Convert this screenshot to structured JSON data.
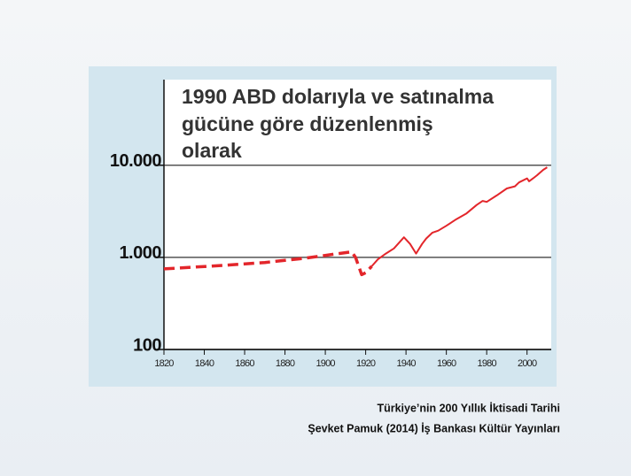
{
  "chart_data": {
    "type": "line",
    "title": [
      "1990 ABD dolarıyla ve satınalma",
      "gücüne göre düzenlenmiş",
      "olarak"
    ],
    "log_y": true,
    "grid": true,
    "xlim": [
      1820,
      2012
    ],
    "xticks": [
      1820,
      1840,
      1860,
      1880,
      1900,
      1920,
      1940,
      1960,
      1980,
      2000
    ],
    "ylim": [
      100,
      85000
    ],
    "yticks": [
      {
        "value": 100,
        "label": "100"
      },
      {
        "value": 1000,
        "label": "1.000"
      },
      {
        "value": 10000,
        "label": "10.000"
      }
    ],
    "series": [
      {
        "color": "#e3262b",
        "dashed": true,
        "x": [
          1820,
          1850,
          1870,
          1890,
          1913,
          1915,
          1918,
          1920,
          1923
        ],
        "values": [
          750,
          820,
          880,
          980,
          1150,
          1000,
          650,
          680,
          800
        ]
      },
      {
        "color": "#e3262b",
        "dashed": false,
        "x": [
          1923,
          1926,
          1930,
          1934,
          1939,
          1942,
          1945,
          1948,
          1950,
          1953,
          1956,
          1960,
          1965,
          1970,
          1975,
          1978,
          1980,
          1985,
          1990,
          1994,
          1996,
          2000,
          2001,
          2003,
          2005,
          2008,
          2010
        ],
        "values": [
          800,
          950,
          1100,
          1250,
          1650,
          1400,
          1100,
          1400,
          1600,
          1850,
          1950,
          2200,
          2600,
          3000,
          3700,
          4100,
          4000,
          4700,
          5600,
          5900,
          6500,
          7200,
          6700,
          7200,
          7800,
          8900,
          9500
        ]
      }
    ]
  },
  "caption": [
    "Türkiye’nin 200 Yıllık İktisadi Tarihi",
    "Şevket Pamuk (2014) İş Bankası Kültür Yayınları"
  ]
}
